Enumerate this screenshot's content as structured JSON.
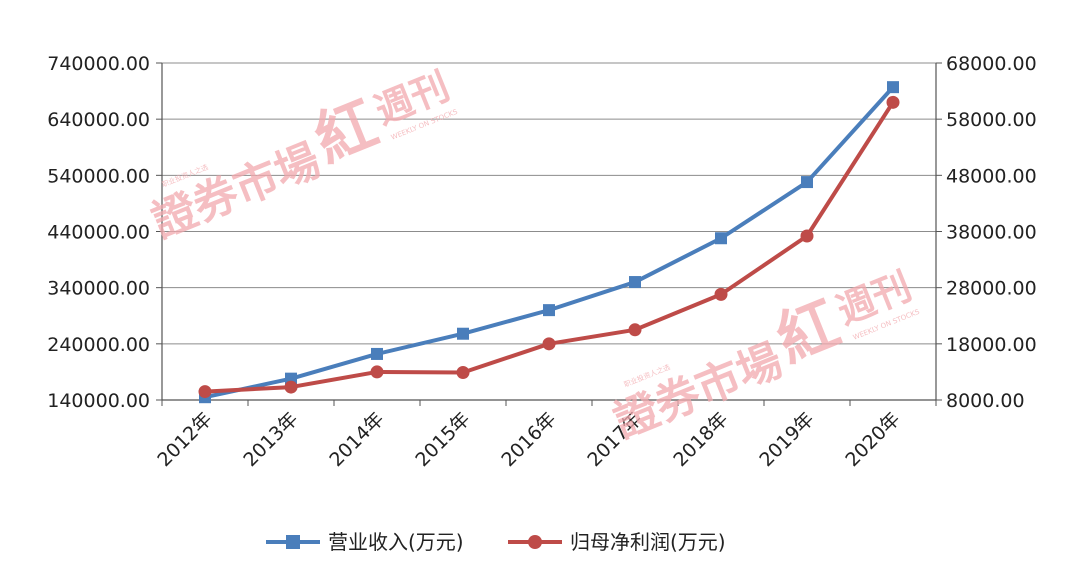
{
  "chart_data": {
    "type": "line",
    "categories": [
      "2012年",
      "2013年",
      "2014年",
      "2015年",
      "2016年",
      "2017年",
      "2018年",
      "2019年",
      "2020年"
    ],
    "series": [
      {
        "name": "营业收入(万元)",
        "axis": "left",
        "color": "#4a7ebb",
        "marker": "square",
        "values": [
          145000,
          178000,
          222000,
          258000,
          300000,
          350000,
          428000,
          528000,
          697000
        ]
      },
      {
        "name": "归母净利润(万元)",
        "axis": "right",
        "color": "#be4b48",
        "marker": "circle",
        "values": [
          9500,
          10300,
          13000,
          12900,
          18000,
          20500,
          26800,
          37200,
          61000
        ]
      }
    ],
    "y_left": {
      "ylim": [
        140000,
        740000
      ],
      "ticks": [
        "740000.00",
        "640000.00",
        "540000.00",
        "440000.00",
        "340000.00",
        "240000.00",
        "140000.00"
      ],
      "tick_values": [
        740000,
        640000,
        540000,
        440000,
        340000,
        240000,
        140000
      ]
    },
    "y_right": {
      "ylim": [
        8000,
        68000
      ],
      "ticks": [
        "68000.00",
        "58000.00",
        "48000.00",
        "38000.00",
        "28000.00",
        "18000.00",
        "8000.00"
      ],
      "tick_values": [
        68000,
        58000,
        48000,
        38000,
        28000,
        18000,
        8000
      ]
    },
    "grid": true,
    "legend_position": "bottom"
  },
  "watermark": {
    "brand": "證券市場",
    "mark": "紅",
    "weekly": "週刊",
    "slogan": "职业投资人之选",
    "english": "WEEKLY ON STOCKS"
  }
}
